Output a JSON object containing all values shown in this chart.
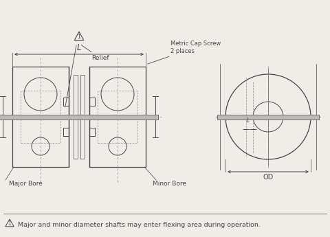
{
  "bg_color": "#f0ede8",
  "line_color": "#444444",
  "dashed_color": "#888888",
  "shaft_color": "#bbbbbb",
  "fig_width": 4.8,
  "fig_height": 3.45,
  "annotations": {
    "L_label": "L",
    "metric_cap_screw": "Metric Cap Screw\n2 places",
    "relief": "Relief",
    "major_bore": "Major Bore",
    "minor_bore": "Minor Bore",
    "OD": "OD",
    "warning": "Major and minor diameter shafts may enter flexing area during operation."
  }
}
